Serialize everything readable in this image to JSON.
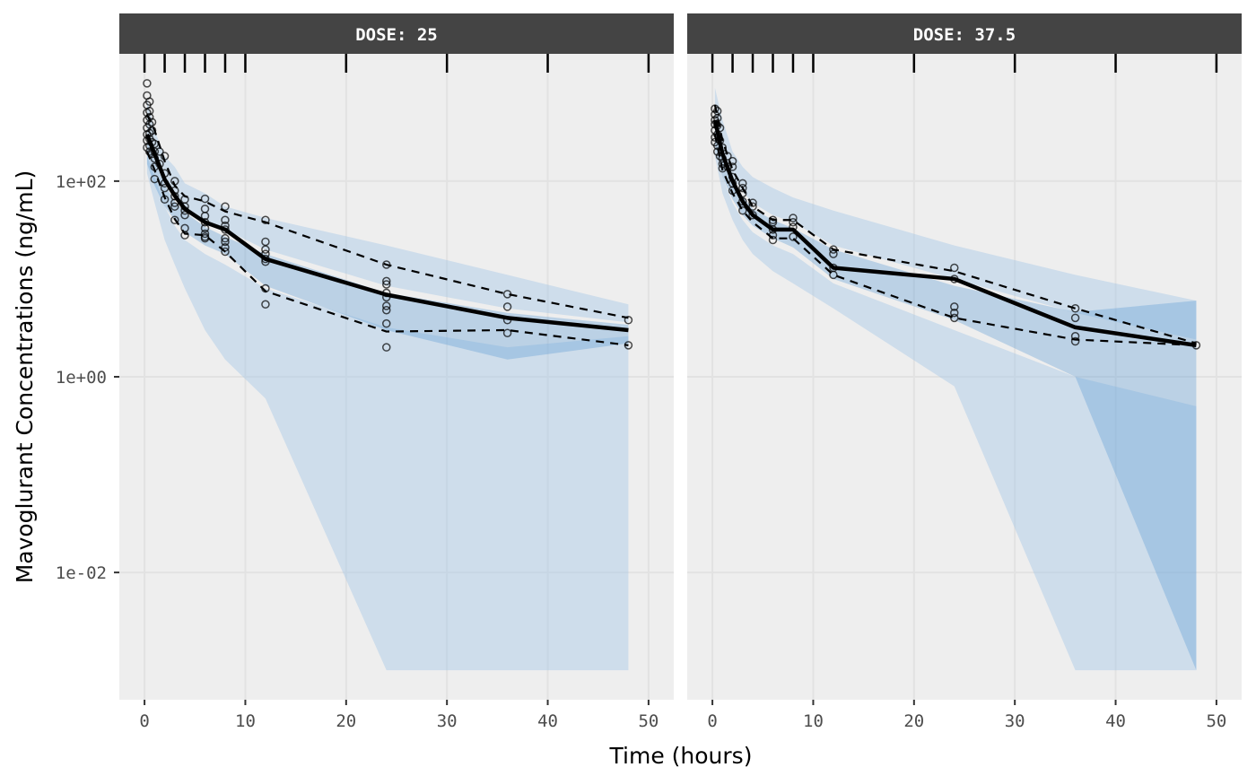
{
  "chart_data": {
    "type": "line",
    "subtype": "visual-predictive-check",
    "xlabel": "Time (hours)",
    "ylabel": "Mavoglurant Concentrations (ng/mL)",
    "y_scale": "log10",
    "xlim": [
      -2.5,
      52.5
    ],
    "ylim": [
      0.0005,
      2000
    ],
    "x_ticks": [
      0,
      10,
      20,
      30,
      40,
      50
    ],
    "x_tick_labels": [
      "0",
      "10",
      "20",
      "30",
      "40",
      "50"
    ],
    "y_ticks": [
      0.01,
      1,
      100
    ],
    "y_tick_labels": [
      "1e-02",
      "1e+00",
      "1e+02"
    ],
    "grid": true,
    "bin_rug": [
      0,
      2,
      4,
      6,
      8,
      10,
      20,
      30,
      40,
      50
    ],
    "colors": {
      "strip_bg": "#444444",
      "panel_bg": "#EEEEEE",
      "grid": "#E0E0E0",
      "band_outer": "#A6C8E6",
      "band_median": "#5B9BD5",
      "band_opacity": 0.45
    },
    "panels": [
      {
        "strip": "DOSE: 25",
        "times": [
          0.25,
          1,
          2,
          3,
          4,
          6,
          8,
          12,
          24,
          36,
          48
        ],
        "observed_median": [
          300,
          190,
          104,
          71,
          52,
          38,
          32,
          16,
          6.9,
          4.0,
          3.0
        ],
        "observed_p95": [
          480,
          330,
          160,
          90,
          70,
          62,
          49,
          38,
          14,
          7,
          4
        ],
        "observed_p05": [
          200,
          130,
          68,
          41,
          29,
          28,
          19,
          7.5,
          2.9,
          3.0,
          2.1
        ],
        "pi_p95": {
          "upper": [
            700,
            330,
            180,
            140,
            95,
            75,
            55,
            42,
            22,
            11,
            5.5
          ],
          "lower": [
            300,
            160,
            95,
            70,
            55,
            40,
            32,
            20,
            8.5,
            5.0,
            3.6
          ]
        },
        "pi_p50": {
          "upper": [
            280,
            160,
            92,
            62,
            48,
            34,
            27,
            18,
            7.2,
            4.5,
            3.4
          ],
          "lower": [
            150,
            90,
            55,
            40,
            30,
            22,
            18,
            8.5,
            3.0,
            1.5,
            2.2
          ]
        },
        "pi_p05": {
          "upper": [
            180,
            110,
            55,
            35,
            25,
            18,
            14,
            8,
            3.2,
            2.0,
            2.6
          ],
          "lower": [
            120,
            60,
            25,
            14,
            8,
            3,
            1.5,
            0.6,
            0.001,
            0.001,
            0.001
          ]
        },
        "points": [
          [
            0.25,
            1000
          ],
          [
            0.25,
            750
          ],
          [
            0.25,
            600
          ],
          [
            0.25,
            500
          ],
          [
            0.25,
            420
          ],
          [
            0.25,
            350
          ],
          [
            0.25,
            300
          ],
          [
            0.25,
            260
          ],
          [
            0.25,
            220
          ],
          [
            0.5,
            650
          ],
          [
            0.5,
            520
          ],
          [
            0.5,
            450
          ],
          [
            0.5,
            380
          ],
          [
            0.5,
            310
          ],
          [
            0.5,
            270
          ],
          [
            0.5,
            230
          ],
          [
            0.5,
            200
          ],
          [
            0.75,
            400
          ],
          [
            0.75,
            330
          ],
          [
            0.75,
            250
          ],
          [
            0.75,
            190
          ],
          [
            1,
            240
          ],
          [
            1,
            200
          ],
          [
            1,
            170
          ],
          [
            1,
            140
          ],
          [
            1,
            105
          ],
          [
            1.5,
            200
          ],
          [
            1.5,
            150
          ],
          [
            2,
            180
          ],
          [
            2,
            120
          ],
          [
            2,
            95
          ],
          [
            2,
            85
          ],
          [
            2,
            65
          ],
          [
            3,
            100
          ],
          [
            3,
            80
          ],
          [
            3,
            70
          ],
          [
            3,
            60
          ],
          [
            3,
            55
          ],
          [
            3,
            40
          ],
          [
            4,
            65
          ],
          [
            4,
            55
          ],
          [
            4,
            50
          ],
          [
            4,
            45
          ],
          [
            4,
            33
          ],
          [
            4,
            28
          ],
          [
            6,
            66
          ],
          [
            6,
            52
          ],
          [
            6,
            44
          ],
          [
            6,
            38
          ],
          [
            6,
            33
          ],
          [
            6,
            29
          ],
          [
            6,
            27
          ],
          [
            6,
            26
          ],
          [
            8,
            55
          ],
          [
            8,
            40
          ],
          [
            8,
            35
          ],
          [
            8,
            32
          ],
          [
            8,
            26
          ],
          [
            8,
            24
          ],
          [
            8,
            21
          ],
          [
            8,
            19
          ],
          [
            12,
            40
          ],
          [
            12,
            24
          ],
          [
            12,
            20
          ],
          [
            12,
            18
          ],
          [
            12,
            16
          ],
          [
            12,
            15
          ],
          [
            12,
            8
          ],
          [
            12,
            5.5
          ],
          [
            24,
            14
          ],
          [
            24,
            9.5
          ],
          [
            24,
            8.8
          ],
          [
            24,
            7.2
          ],
          [
            24,
            6.5
          ],
          [
            24,
            5.3
          ],
          [
            24,
            4.8
          ],
          [
            24,
            3.5
          ],
          [
            24,
            2.0
          ],
          [
            36,
            7
          ],
          [
            36,
            5.2
          ],
          [
            36,
            3.8
          ],
          [
            36,
            2.8
          ],
          [
            48,
            3.8
          ],
          [
            48,
            2.1
          ]
        ]
      },
      {
        "strip": "DOSE: 37.5",
        "times": [
          0.25,
          1,
          2,
          3,
          4,
          6,
          8,
          12,
          24,
          36,
          48
        ],
        "observed_median": [
          420,
          190,
          100,
          62,
          45,
          32,
          32,
          13,
          10,
          3.2,
          2.1
        ],
        "observed_p95": [
          600,
          260,
          130,
          85,
          55,
          40,
          40,
          20,
          12,
          5,
          2.2
        ],
        "observed_p05": [
          300,
          130,
          75,
          50,
          38,
          26,
          26,
          11,
          4.0,
          2.4,
          2.1
        ],
        "pi_p95": {
          "upper": [
            900,
            420,
            200,
            140,
            110,
            85,
            68,
            50,
            22,
            11,
            6.0
          ],
          "lower": [
            450,
            200,
            110,
            78,
            60,
            45,
            38,
            22,
            10,
            4.5,
            2.4
          ]
        },
        "pi_p50": {
          "upper": [
            400,
            180,
            100,
            70,
            52,
            40,
            33,
            20,
            8.5,
            4.6,
            6.0
          ],
          "lower": [
            250,
            110,
            65,
            45,
            35,
            26,
            21,
            10,
            3.8,
            1.0,
            0.001
          ]
        },
        "pi_p05": {
          "upper": [
            260,
            110,
            60,
            40,
            30,
            22,
            18,
            9,
            3.0,
            1.0,
            0.5
          ],
          "lower": [
            180,
            75,
            40,
            25,
            18,
            12,
            9,
            5,
            0.8,
            0.001,
            0.001
          ]
        },
        "points": [
          [
            0.25,
            550
          ],
          [
            0.25,
            480
          ],
          [
            0.25,
            420
          ],
          [
            0.25,
            380
          ],
          [
            0.25,
            330
          ],
          [
            0.25,
            280
          ],
          [
            0.25,
            250
          ],
          [
            0.5,
            520
          ],
          [
            0.5,
            440
          ],
          [
            0.5,
            370
          ],
          [
            0.5,
            300
          ],
          [
            0.5,
            230
          ],
          [
            0.5,
            200
          ],
          [
            0.75,
            350
          ],
          [
            0.75,
            260
          ],
          [
            0.75,
            180
          ],
          [
            1,
            220
          ],
          [
            1,
            170
          ],
          [
            1,
            150
          ],
          [
            1,
            135
          ],
          [
            1.5,
            180
          ],
          [
            1.5,
            140
          ],
          [
            2,
            160
          ],
          [
            2,
            140
          ],
          [
            2,
            110
          ],
          [
            2,
            95
          ],
          [
            2,
            80
          ],
          [
            3,
            95
          ],
          [
            3,
            85
          ],
          [
            3,
            75
          ],
          [
            3,
            62
          ],
          [
            3,
            50
          ],
          [
            4,
            60
          ],
          [
            4,
            55
          ],
          [
            4,
            45
          ],
          [
            6,
            40
          ],
          [
            6,
            38
          ],
          [
            6,
            32
          ],
          [
            6,
            28
          ],
          [
            6,
            25
          ],
          [
            8,
            42
          ],
          [
            8,
            38
          ],
          [
            8,
            34
          ],
          [
            8,
            27
          ],
          [
            12,
            20
          ],
          [
            12,
            18
          ],
          [
            12,
            13
          ],
          [
            12,
            11
          ],
          [
            24,
            13
          ],
          [
            24,
            10
          ],
          [
            24,
            5.2
          ],
          [
            24,
            4.5
          ],
          [
            24,
            4.0
          ],
          [
            36,
            5.0
          ],
          [
            36,
            4.0
          ],
          [
            36,
            2.6
          ],
          [
            36,
            2.3
          ],
          [
            48,
            2.1
          ]
        ]
      }
    ]
  }
}
